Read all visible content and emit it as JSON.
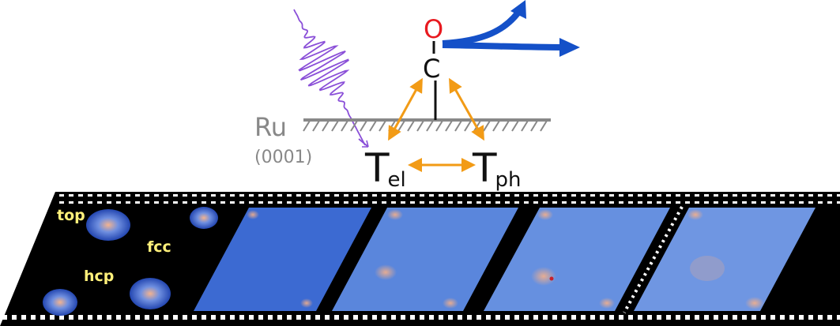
{
  "schematic": {
    "surface_label": "Ru",
    "surface_facet": "(0001)",
    "molecule": {
      "top_atom": "O",
      "bottom_atom": "C"
    },
    "electron_temperature": {
      "symbol": "T",
      "subscript": "el"
    },
    "phonon_temperature": {
      "symbol": "T",
      "subscript": "ph"
    }
  },
  "site_labels": {
    "top": "top",
    "fcc": "fcc",
    "hcp": "hcp"
  },
  "colors": {
    "oxygen": "#e8191f",
    "carbon": "#111111",
    "desorption_arrow": "#1450c8",
    "coupling_arrow": "#f29b16",
    "laser_pulse": "#8a4fd8",
    "surface": "#888888",
    "film_base": "#000000",
    "site_label": "#fff07a",
    "density_blue": "#3c6ad2"
  },
  "icons": [
    "laser-pulse-icon",
    "desorption-arrow-icon",
    "coupling-arrow-icon",
    "film-strip-icon"
  ]
}
